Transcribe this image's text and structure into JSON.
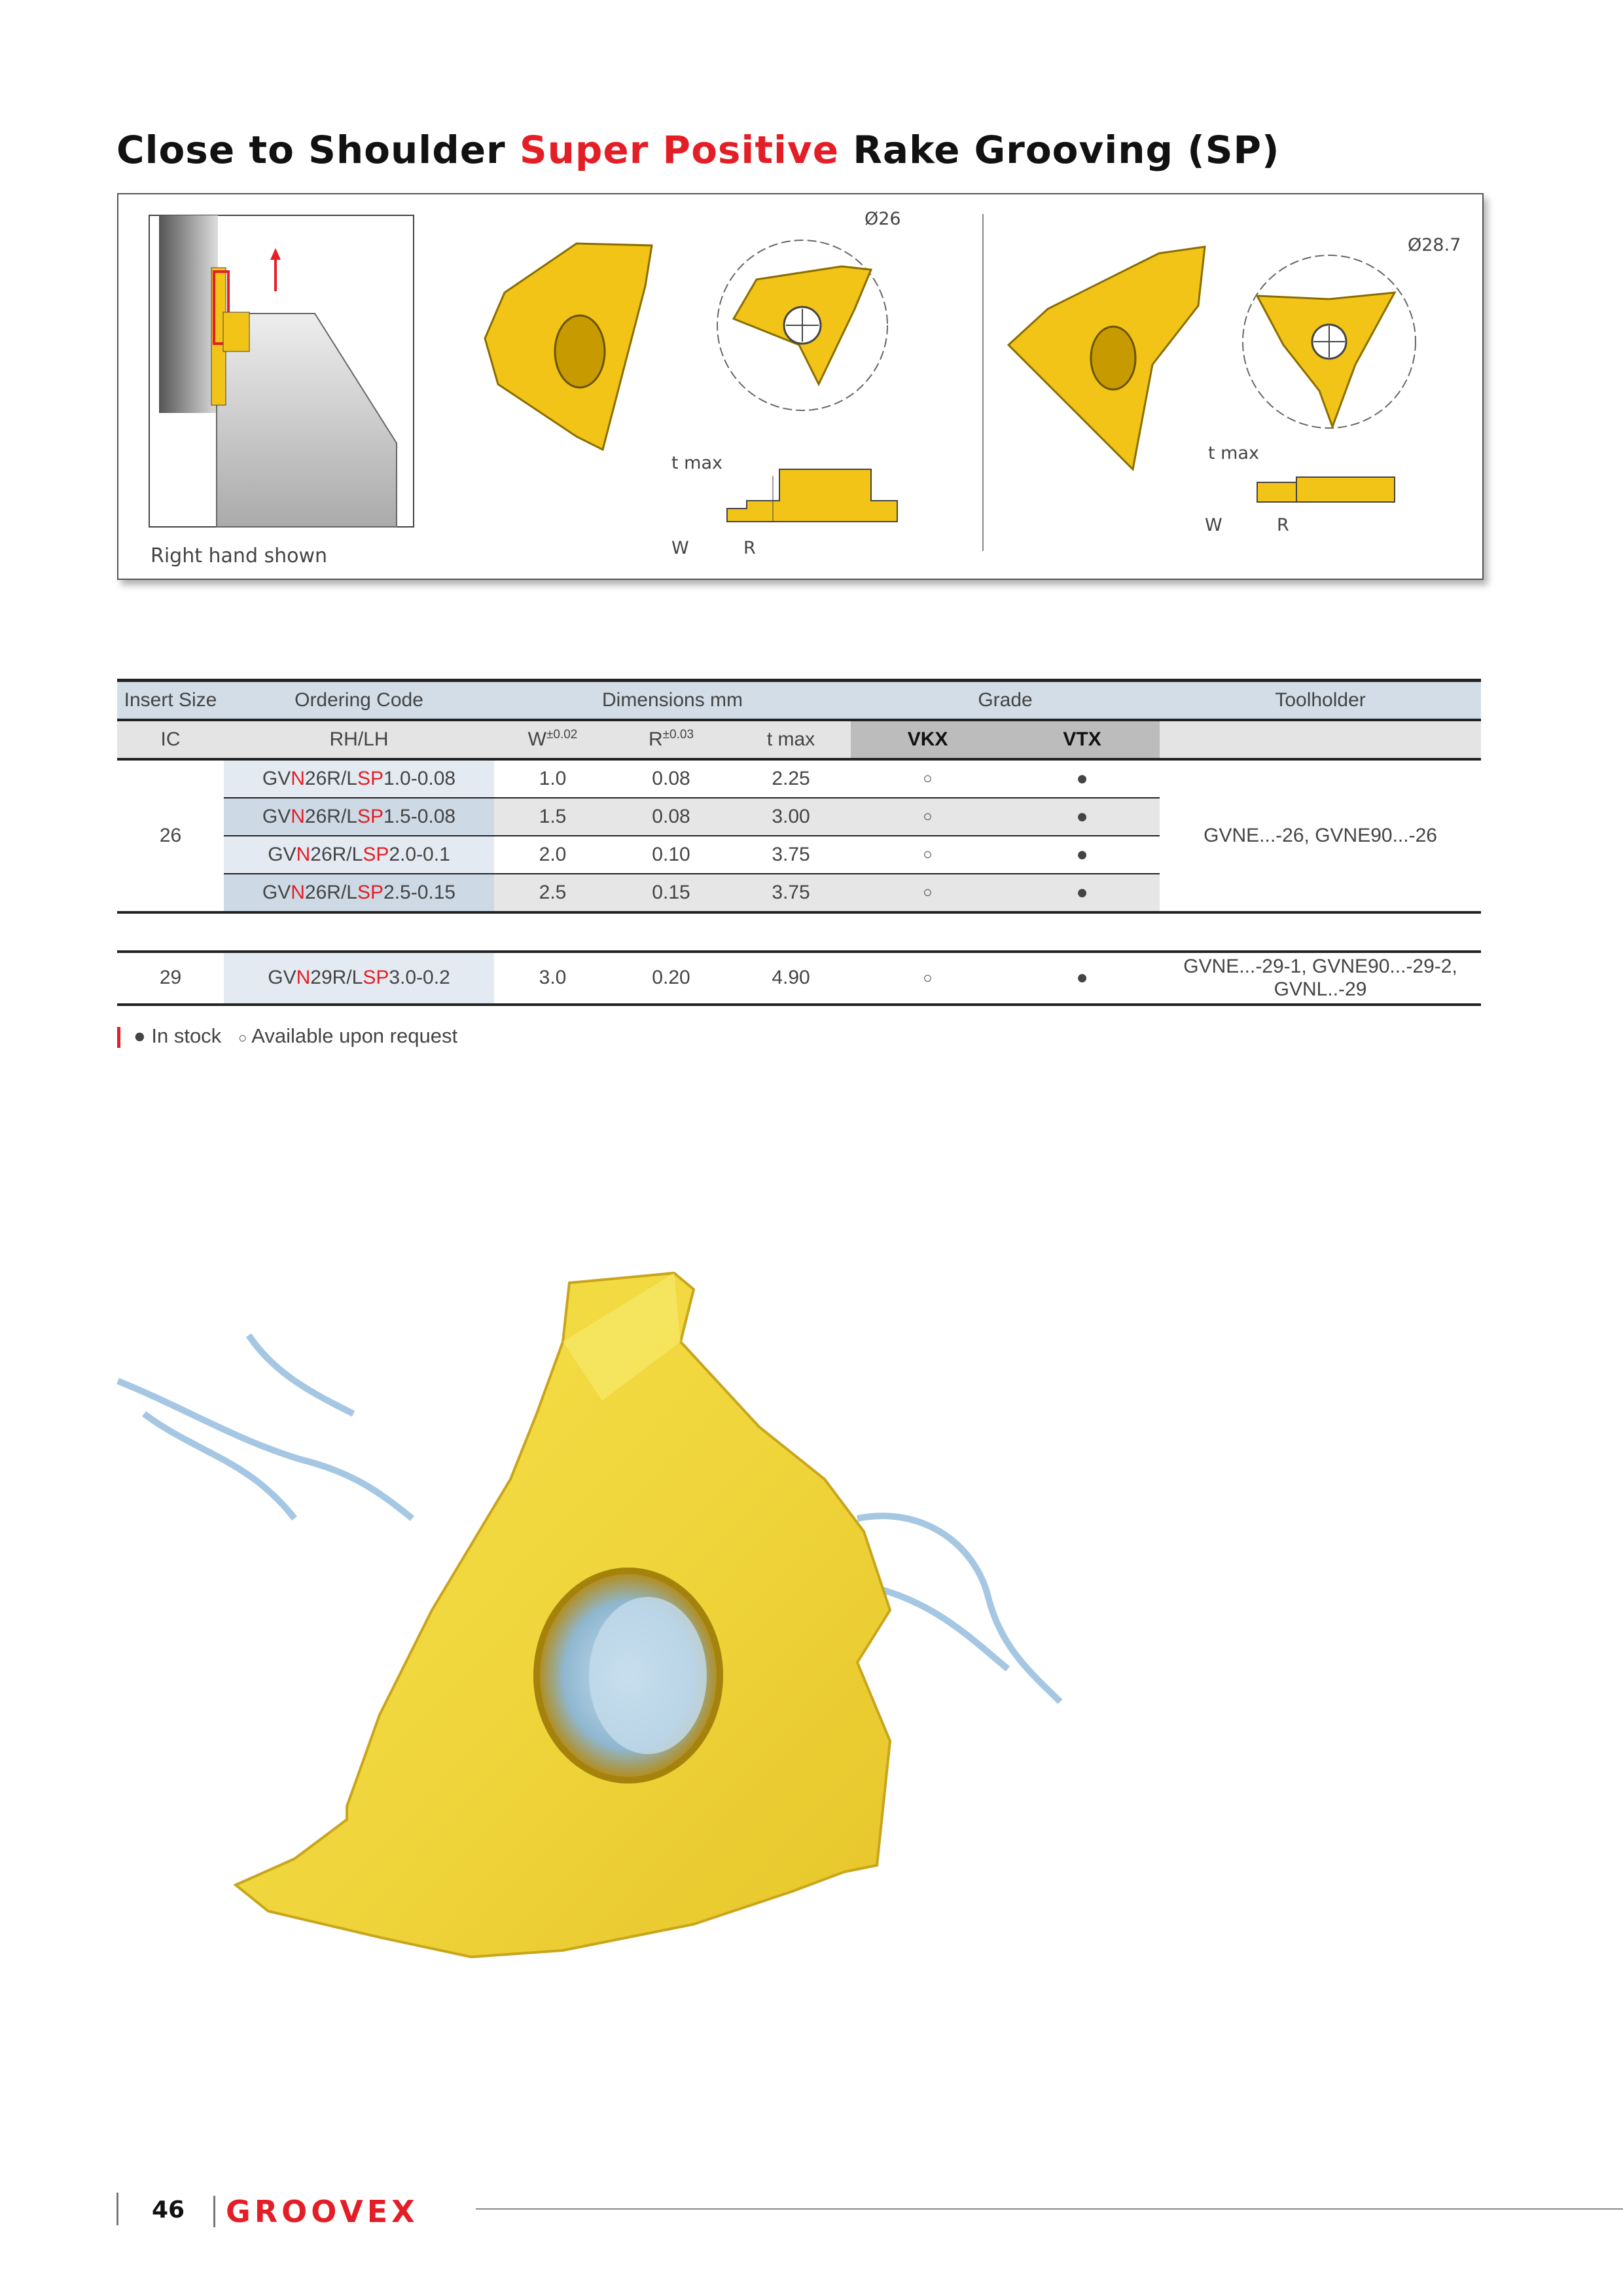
{
  "title": {
    "part1": "Close to Shoulder ",
    "part2": "Super Positive",
    "part3": " Rake Grooving (SP)"
  },
  "figure": {
    "caption": "Right hand shown",
    "left_insert": {
      "diameter": "Ø26",
      "tmax": "t max",
      "w": "W",
      "r": "R"
    },
    "right_insert": {
      "diameter": "Ø28.7",
      "tmax": "t max",
      "w": "W",
      "r": "R"
    }
  },
  "table": {
    "headers": {
      "insert_size": "Insert Size",
      "ordering_code": "Ordering Code",
      "dimensions": "Dimensions mm",
      "grade": "Grade",
      "toolholder": "Toolholder"
    },
    "subheaders": {
      "ic": "IC",
      "rhlh": "RH/LH",
      "w": "W",
      "w_tol": "±0.02",
      "r": "R",
      "r_tol": "±0.03",
      "tmax": "t max",
      "vkx": "VKX",
      "vtx": "VTX"
    },
    "groups": [
      {
        "ic": "26",
        "toolholder": "GVNE...-26, GVNE90...-26",
        "rows": [
          {
            "code": [
              "GV",
              "N",
              "26R/L",
              "SP",
              "1.0-0.08"
            ],
            "w": "1.0",
            "r": "0.08",
            "tmax": "2.25",
            "vkx": "○",
            "vtx": "●"
          },
          {
            "code": [
              "GV",
              "N",
              "26R/L",
              "SP",
              "1.5-0.08"
            ],
            "w": "1.5",
            "r": "0.08",
            "tmax": "3.00",
            "vkx": "○",
            "vtx": "●"
          },
          {
            "code": [
              "GV",
              "N",
              "26R/L",
              "SP",
              "2.0-0.1"
            ],
            "w": "2.0",
            "r": "0.10",
            "tmax": "3.75",
            "vkx": "○",
            "vtx": "●"
          },
          {
            "code": [
              "GV",
              "N",
              "26R/L",
              "SP",
              "2.5-0.15"
            ],
            "w": "2.5",
            "r": "0.15",
            "tmax": "3.75",
            "vkx": "○",
            "vtx": "●"
          }
        ]
      },
      {
        "ic": "29",
        "toolholder": "GVNE...-29-1, GVNE90...-29-2, GVNL..-29",
        "rows": [
          {
            "code": [
              "GV",
              "N",
              "29R/L",
              "SP",
              "3.0-0.2"
            ],
            "w": "3.0",
            "r": "0.20",
            "tmax": "4.90",
            "vkx": "○",
            "vtx": "●"
          }
        ]
      }
    ]
  },
  "legend": {
    "in_stock_symbol": "●",
    "in_stock": "In stock",
    "request_symbol": "○",
    "request": "Available upon request"
  },
  "footer": {
    "page_number": "46",
    "brand": "GROOVEX"
  },
  "colors": {
    "accent": "#e41e26",
    "insert_gold": "#f2c418",
    "header_blue": "#d2dde8"
  }
}
